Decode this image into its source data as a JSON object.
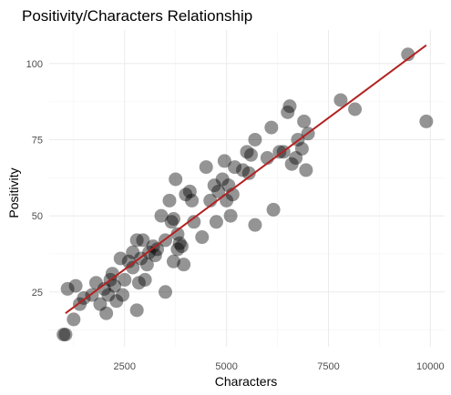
{
  "chart_data": {
    "type": "scatter",
    "title": "Positivity/Characters Relationship",
    "xlabel": "Characters",
    "ylabel": "Positivity",
    "xlim": [
      650,
      10350
    ],
    "ylim": [
      7,
      111
    ],
    "x_ticks": [
      2500,
      5000,
      7500,
      10000
    ],
    "y_ticks": [
      25,
      50,
      75,
      100
    ],
    "x_tick_labels": [
      "2500",
      "5000",
      "7500",
      "10000"
    ],
    "y_tick_labels": [
      "25",
      "50",
      "75",
      "100"
    ],
    "grid": true,
    "legend": "none",
    "point_color": "#000000",
    "trend_color": "#b22222",
    "trend_line": {
      "x": [
        1050,
        9900
      ],
      "y": [
        18,
        106
      ]
    },
    "points": [
      {
        "x": 1000,
        "y": 11
      },
      {
        "x": 1050,
        "y": 11
      },
      {
        "x": 1100,
        "y": 26
      },
      {
        "x": 1250,
        "y": 16
      },
      {
        "x": 1300,
        "y": 27
      },
      {
        "x": 1400,
        "y": 21
      },
      {
        "x": 1500,
        "y": 23
      },
      {
        "x": 1700,
        "y": 24
      },
      {
        "x": 1800,
        "y": 28
      },
      {
        "x": 1900,
        "y": 21
      },
      {
        "x": 2000,
        "y": 26
      },
      {
        "x": 2050,
        "y": 18
      },
      {
        "x": 2100,
        "y": 24
      },
      {
        "x": 2150,
        "y": 29
      },
      {
        "x": 2200,
        "y": 31
      },
      {
        "x": 2250,
        "y": 27
      },
      {
        "x": 2300,
        "y": 22
      },
      {
        "x": 2400,
        "y": 36
      },
      {
        "x": 2450,
        "y": 24
      },
      {
        "x": 2500,
        "y": 29
      },
      {
        "x": 2600,
        "y": 35
      },
      {
        "x": 2700,
        "y": 33
      },
      {
        "x": 2700,
        "y": 38
      },
      {
        "x": 2800,
        "y": 42
      },
      {
        "x": 2800,
        "y": 19
      },
      {
        "x": 2850,
        "y": 28
      },
      {
        "x": 2900,
        "y": 36
      },
      {
        "x": 2950,
        "y": 42
      },
      {
        "x": 3000,
        "y": 29
      },
      {
        "x": 3050,
        "y": 34
      },
      {
        "x": 3100,
        "y": 38
      },
      {
        "x": 3200,
        "y": 40
      },
      {
        "x": 3250,
        "y": 37
      },
      {
        "x": 3300,
        "y": 39
      },
      {
        "x": 3400,
        "y": 50
      },
      {
        "x": 3500,
        "y": 42
      },
      {
        "x": 3500,
        "y": 25
      },
      {
        "x": 3600,
        "y": 55
      },
      {
        "x": 3650,
        "y": 48
      },
      {
        "x": 3700,
        "y": 49
      },
      {
        "x": 3700,
        "y": 35
      },
      {
        "x": 3750,
        "y": 62
      },
      {
        "x": 3800,
        "y": 44
      },
      {
        "x": 3800,
        "y": 39
      },
      {
        "x": 3850,
        "y": 41
      },
      {
        "x": 3900,
        "y": 40
      },
      {
        "x": 3950,
        "y": 34
      },
      {
        "x": 4000,
        "y": 57
      },
      {
        "x": 4100,
        "y": 58
      },
      {
        "x": 4150,
        "y": 55
      },
      {
        "x": 4200,
        "y": 48
      },
      {
        "x": 4400,
        "y": 43
      },
      {
        "x": 4500,
        "y": 66
      },
      {
        "x": 4600,
        "y": 55
      },
      {
        "x": 4700,
        "y": 60
      },
      {
        "x": 4750,
        "y": 48
      },
      {
        "x": 4800,
        "y": 58
      },
      {
        "x": 4900,
        "y": 62
      },
      {
        "x": 4950,
        "y": 68
      },
      {
        "x": 5000,
        "y": 55
      },
      {
        "x": 5050,
        "y": 60
      },
      {
        "x": 5100,
        "y": 50
      },
      {
        "x": 5150,
        "y": 57
      },
      {
        "x": 5200,
        "y": 66
      },
      {
        "x": 5400,
        "y": 65
      },
      {
        "x": 5500,
        "y": 71
      },
      {
        "x": 5550,
        "y": 64
      },
      {
        "x": 5600,
        "y": 70
      },
      {
        "x": 5700,
        "y": 47
      },
      {
        "x": 5700,
        "y": 75
      },
      {
        "x": 6000,
        "y": 69
      },
      {
        "x": 6100,
        "y": 79
      },
      {
        "x": 6150,
        "y": 52
      },
      {
        "x": 6300,
        "y": 71
      },
      {
        "x": 6400,
        "y": 71
      },
      {
        "x": 6500,
        "y": 84
      },
      {
        "x": 6550,
        "y": 86
      },
      {
        "x": 6600,
        "y": 67
      },
      {
        "x": 6700,
        "y": 69
      },
      {
        "x": 6750,
        "y": 75
      },
      {
        "x": 6850,
        "y": 72
      },
      {
        "x": 6900,
        "y": 81
      },
      {
        "x": 6950,
        "y": 65
      },
      {
        "x": 7000,
        "y": 77
      },
      {
        "x": 7800,
        "y": 88
      },
      {
        "x": 8150,
        "y": 85
      },
      {
        "x": 9450,
        "y": 103
      },
      {
        "x": 9900,
        "y": 81
      }
    ]
  }
}
